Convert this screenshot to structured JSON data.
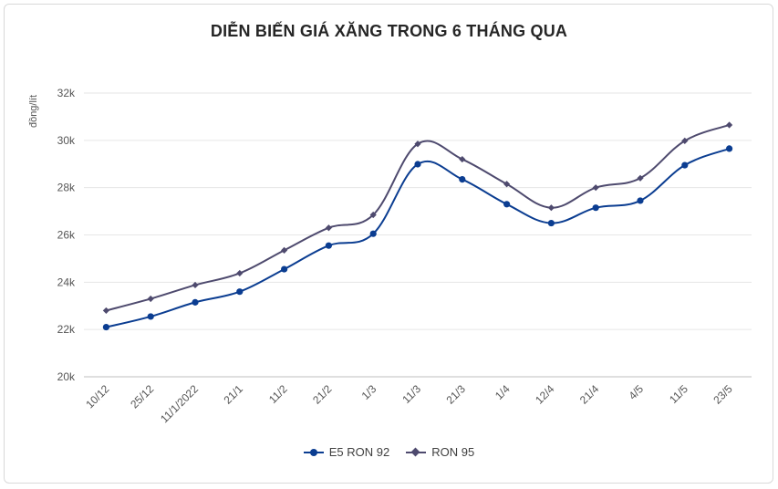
{
  "chart_data": {
    "type": "line",
    "title": "DIỄN BIẾN GIÁ XĂNG TRONG 6 THÁNG QUA",
    "ylabel": "đồng/lít",
    "xlabel": "",
    "ylim": [
      20000,
      32000
    ],
    "yticks": [
      20000,
      22000,
      24000,
      26000,
      28000,
      30000,
      32000
    ],
    "ytick_labels": [
      "20k",
      "22k",
      "24k",
      "26k",
      "28k",
      "30k",
      "32k"
    ],
    "grid": true,
    "legend_position": "bottom",
    "categories": [
      "10/12",
      "25/12",
      "11/1/2022",
      "21/1",
      "11/2",
      "21/2",
      "1/3",
      "11/3",
      "21/3",
      "1/4",
      "12/4",
      "21/4",
      "4/5",
      "11/5",
      "23/5"
    ],
    "series": [
      {
        "name": "E5 RON 92",
        "color": "#0b3d91",
        "marker": "circle",
        "values": [
          22100,
          22550,
          23150,
          23600,
          24550,
          25550,
          26050,
          28990,
          28350,
          27300,
          26500,
          27150,
          27450,
          28950,
          29650
        ]
      },
      {
        "name": "RON 95",
        "color": "#4e4a6e",
        "marker": "diamond",
        "values": [
          22800,
          23300,
          23880,
          24380,
          25350,
          26300,
          26850,
          29850,
          29200,
          28150,
          27150,
          28000,
          28400,
          29980,
          30650
        ]
      }
    ]
  }
}
